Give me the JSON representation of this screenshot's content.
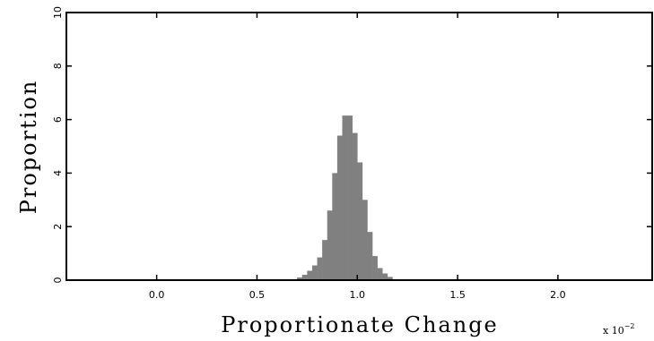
{
  "chart_data": {
    "type": "bar",
    "title": "",
    "xlabel": "Proportionate Change",
    "ylabel": "Proportion",
    "x_scale_note": "x 10",
    "x_scale_exponent": "−2",
    "xlim": [
      -0.45,
      2.47
    ],
    "ylim": [
      0,
      10
    ],
    "xticks": [
      0.0,
      0.5,
      1.0,
      1.5,
      2.0
    ],
    "xtick_labels": [
      "0.0",
      "0.5",
      "1.0",
      "1.5",
      "2.0"
    ],
    "yticks": [
      0,
      2,
      4,
      6,
      8,
      10
    ],
    "ytick_labels": [
      "0",
      "2",
      "4",
      "6",
      "8",
      "10"
    ],
    "bin_width": 0.025,
    "bar_color": "#808080",
    "bins": [
      {
        "x": 0.7125,
        "y": 0.1
      },
      {
        "x": 0.7375,
        "y": 0.2
      },
      {
        "x": 0.7625,
        "y": 0.35
      },
      {
        "x": 0.7875,
        "y": 0.55
      },
      {
        "x": 0.8125,
        "y": 0.85
      },
      {
        "x": 0.8375,
        "y": 1.5
      },
      {
        "x": 0.8625,
        "y": 2.6
      },
      {
        "x": 0.8875,
        "y": 4.0
      },
      {
        "x": 0.9125,
        "y": 5.4
      },
      {
        "x": 0.9375,
        "y": 6.15
      },
      {
        "x": 0.9625,
        "y": 6.15
      },
      {
        "x": 0.9875,
        "y": 5.5
      },
      {
        "x": 1.0125,
        "y": 4.4
      },
      {
        "x": 1.0375,
        "y": 3.0
      },
      {
        "x": 1.0625,
        "y": 1.8
      },
      {
        "x": 1.0875,
        "y": 0.9
      },
      {
        "x": 1.1125,
        "y": 0.45
      },
      {
        "x": 1.1375,
        "y": 0.25
      },
      {
        "x": 1.1625,
        "y": 0.12
      }
    ]
  }
}
